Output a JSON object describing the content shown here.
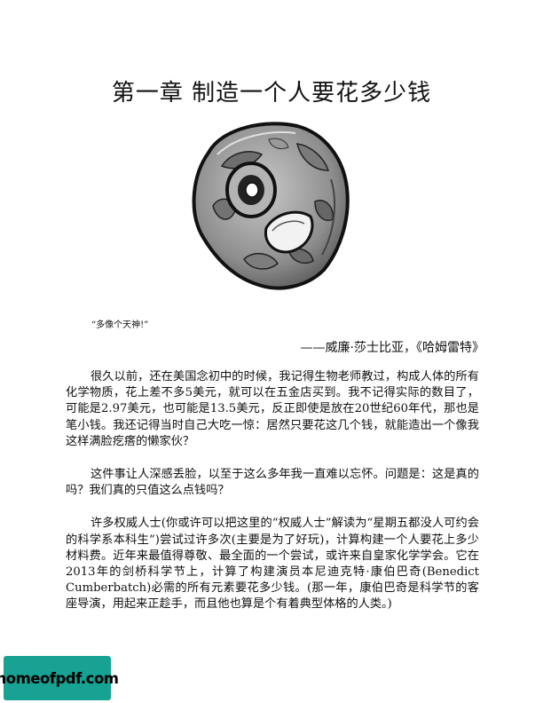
{
  "page": {
    "title": "第一章 制造一个人要花多少钱",
    "illustration": "rock-mineral-illustration"
  },
  "epigraph": {
    "quote": "“多像个天神!”",
    "source": "——威廉·莎士比亚，《哈姆雷特》"
  },
  "paragraphs": [
    "很久以前，还在美国念初中的时候，我记得生物老师教过，构成人体的所有化学物质，花上差不多5美元，就可以在五金店买到。我不记得实际的数目了，可能是2.97美元，也可能是13.5美元，反正即使是放在20世纪60年代，那也是笔小钱。我还记得当时自己大吃一惊：居然只要花这几个钱，就能造出一个像我这样满脸疙瘩的懒家伙？",
    "这件事让人深感丢脸，以至于这么多年我一直难以忘怀。问题是：这是真的吗？我们真的只值这么点钱吗？",
    "许多权威人士(你或许可以把这里的“权威人士”解读为“星期五都没人可约会的科学系本科生”)尝试过许多次(主要是为了好玩)，计算构建一个人要花上多少材料费。近年来最值得尊敬、最全面的一个尝试，或许来自皇家化学学会。它在2013年的剑桥科学节上，计算了构建演员本尼迪克特·康伯巴奇(Benedict Cumberbatch)必需的所有元素要花多少钱。(那一年，康伯巴奇是科学节的客座导演，用起来正趁手，而且他也算是个有着典型体格的人类。)"
  ],
  "watermark": {
    "text": "homeofpdf.com",
    "color": "#17a293"
  }
}
